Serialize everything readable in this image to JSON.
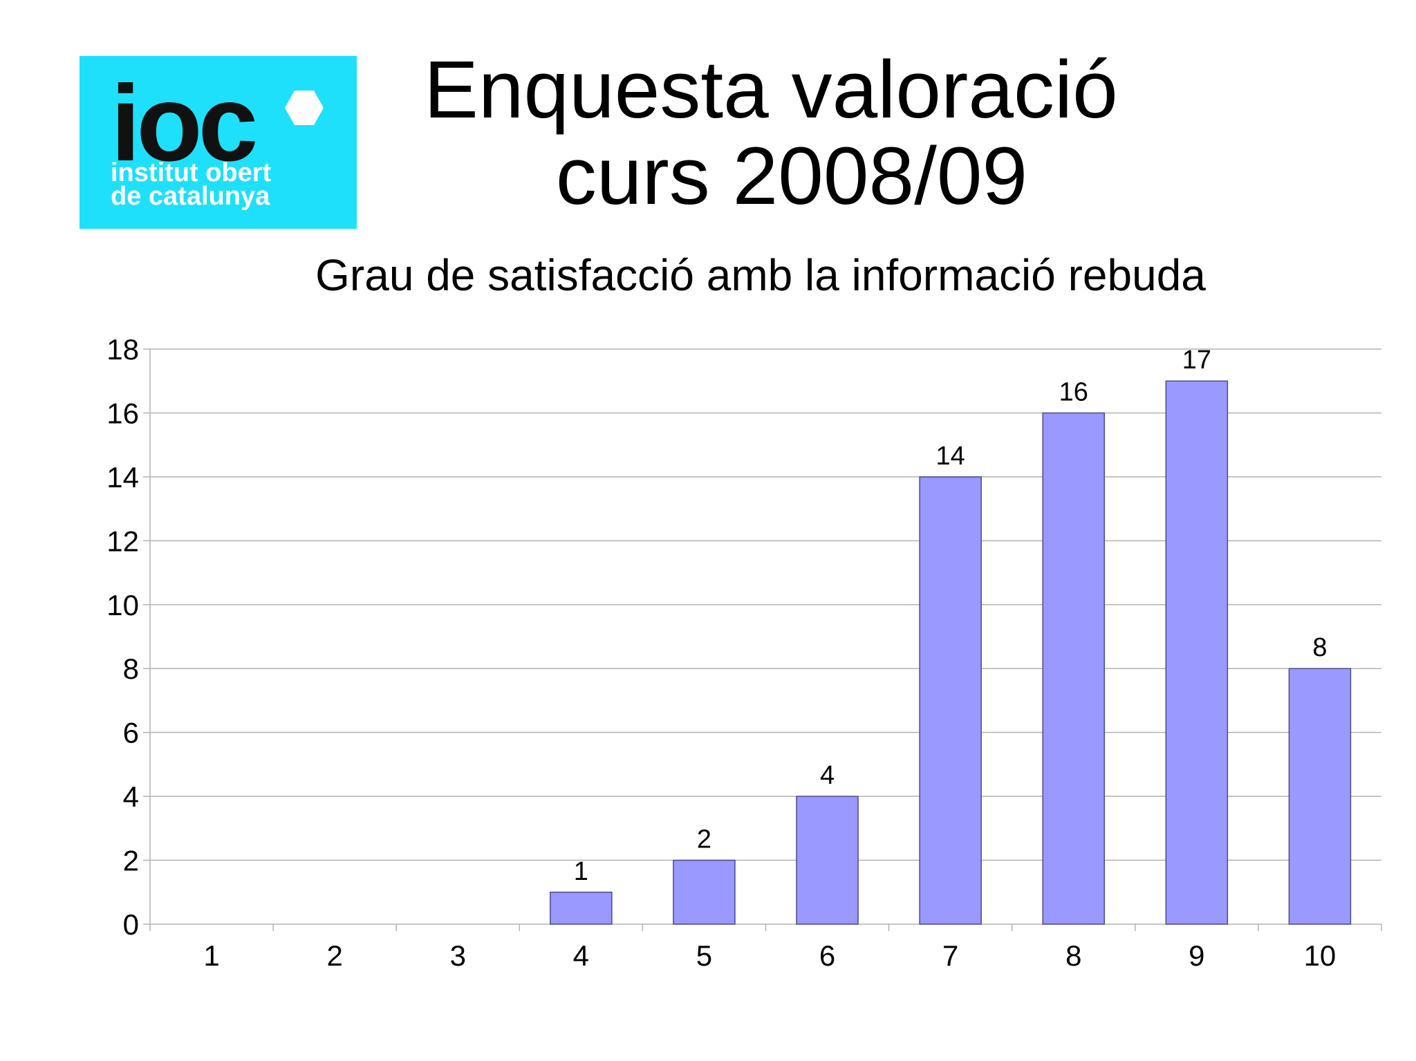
{
  "logo": {
    "mark": "ioc",
    "line1": "institut obert",
    "line2": "de catalunya",
    "background_color": "#1ee0fb"
  },
  "title": {
    "line1": "Enquesta valoració",
    "line2": "curs 2008/09"
  },
  "chart_data": {
    "type": "bar",
    "title": "Grau de satisfacció amb la informació rebuda",
    "xlabel": "",
    "ylabel": "",
    "categories": [
      "1",
      "2",
      "3",
      "4",
      "5",
      "6",
      "7",
      "8",
      "9",
      "10"
    ],
    "values": [
      0,
      0,
      0,
      1,
      2,
      4,
      14,
      16,
      17,
      8
    ],
    "data_labels": [
      "",
      "",
      "",
      "1",
      "2",
      "4",
      "14",
      "16",
      "17",
      "8"
    ],
    "ylim": [
      0,
      18
    ],
    "yticks": [
      "0",
      "2",
      "4",
      "6",
      "8",
      "10",
      "12",
      "14",
      "16",
      "18"
    ],
    "grid": true,
    "legend": "none",
    "bar_color": "#9999ff",
    "bar_edge_color": "#4b4b8a"
  }
}
